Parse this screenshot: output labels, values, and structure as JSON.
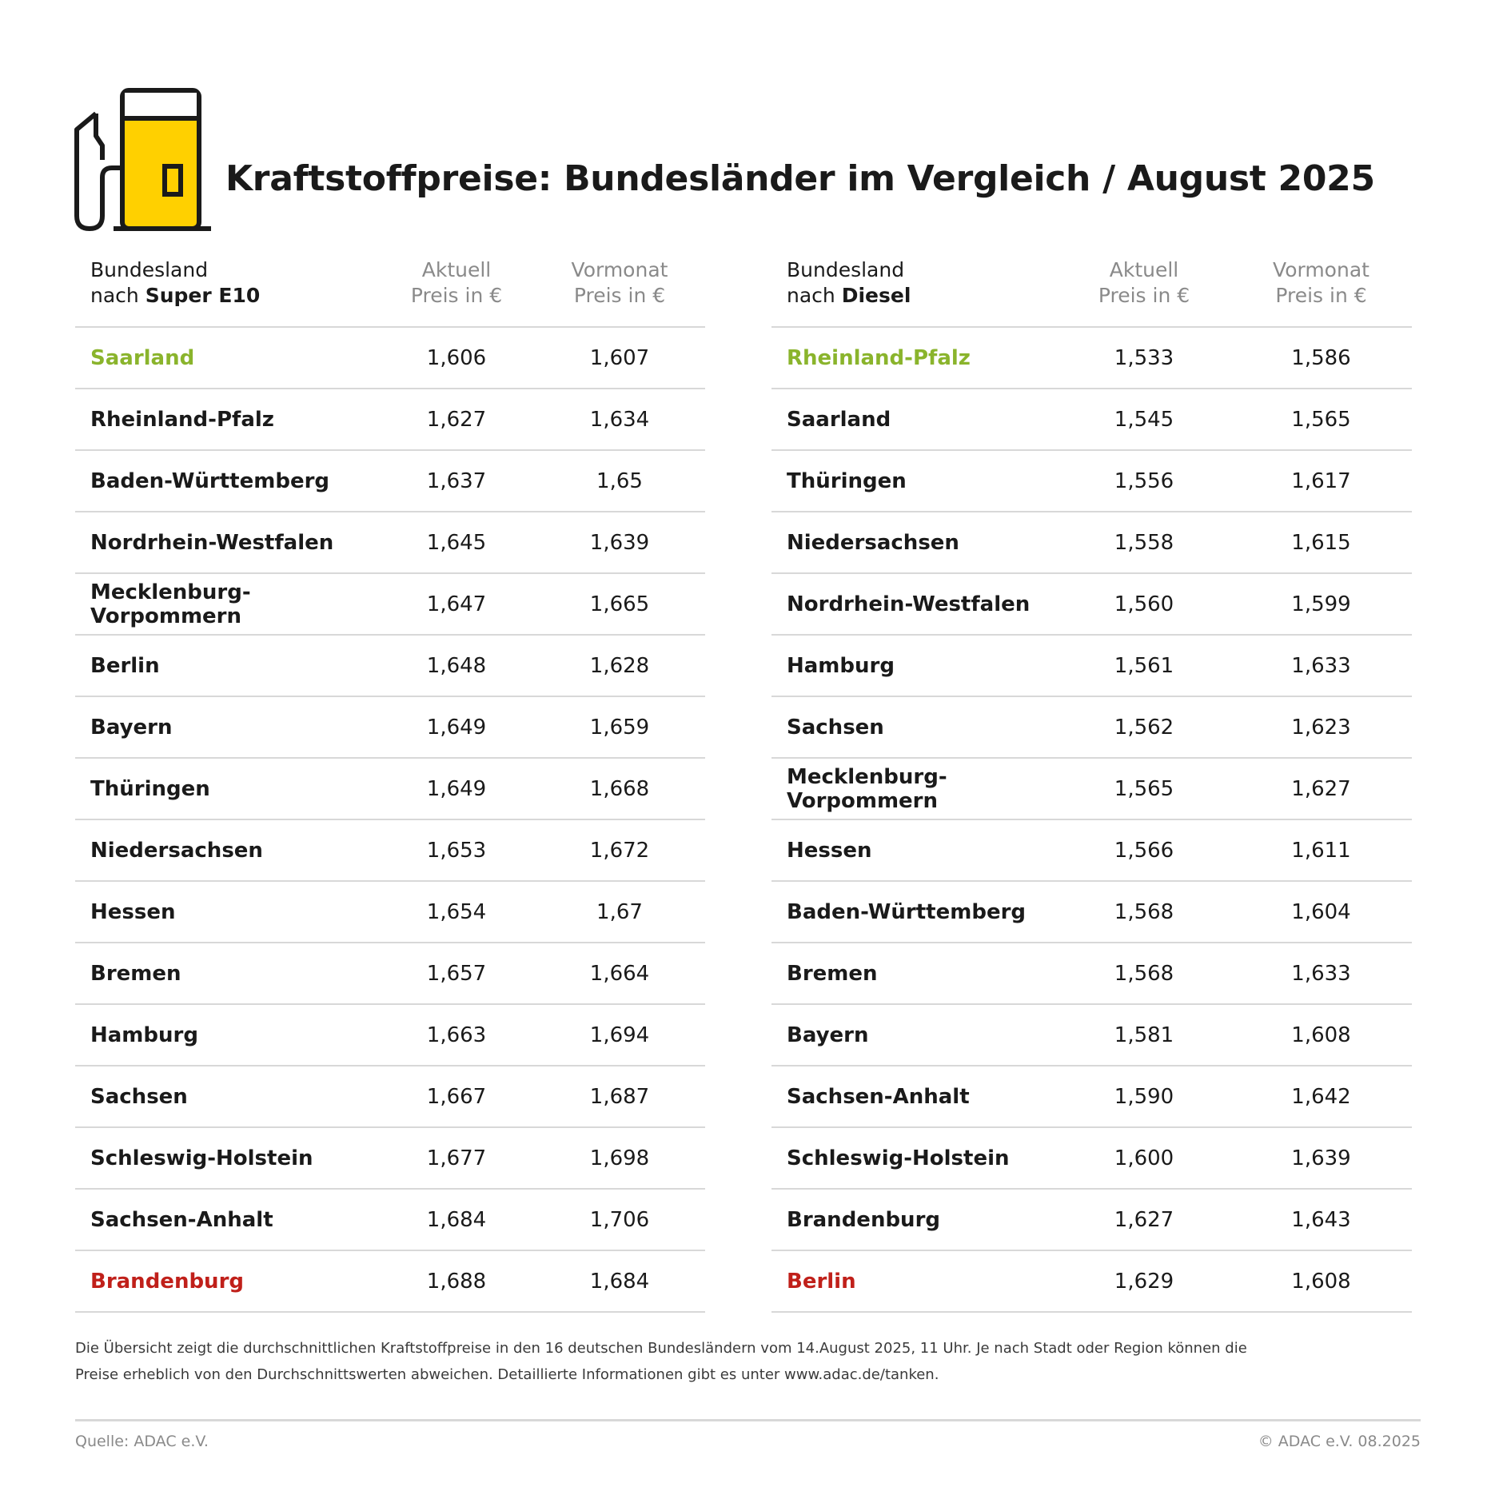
{
  "title": "Kraftstoffpreise: Bundesländer im Vergleich / August 2025",
  "icon": "fuel-pump-icon",
  "colors": {
    "accent": "#ffd000",
    "best": "#8ab42c",
    "worst": "#c0201a"
  },
  "chart_data": [
    {
      "type": "table",
      "header": {
        "region_line1": "Bundesland",
        "region_line2_prefix": "nach",
        "region_line2_fuel": "Super E10",
        "aktuell_line1": "Aktuell",
        "aktuell_line2": "Preis in €",
        "vormonat_line1": "Vormonat",
        "vormonat_line2": "Preis in €"
      },
      "rows": [
        [
          "Saarland",
          "1,606",
          "1,607"
        ],
        [
          "Rheinland-Pfalz",
          "1,627",
          "1,634"
        ],
        [
          "Baden-Württemberg",
          "1,637",
          "1,65"
        ],
        [
          "Nordrhein-Westfalen",
          "1,645",
          "1,639"
        ],
        [
          "Mecklenburg-Vorpommern",
          "1,647",
          "1,665"
        ],
        [
          "Berlin",
          "1,648",
          "1,628"
        ],
        [
          "Bayern",
          "1,649",
          "1,659"
        ],
        [
          "Thüringen",
          "1,649",
          "1,668"
        ],
        [
          "Niedersachsen",
          "1,653",
          "1,672"
        ],
        [
          "Hessen",
          "1,654",
          "1,67"
        ],
        [
          "Bremen",
          "1,657",
          "1,664"
        ],
        [
          "Hamburg",
          "1,663",
          "1,694"
        ],
        [
          "Sachsen",
          "1,667",
          "1,687"
        ],
        [
          "Schleswig-Holstein",
          "1,677",
          "1,698"
        ],
        [
          "Sachsen-Anhalt",
          "1,684",
          "1,706"
        ],
        [
          "Brandenburg",
          "1,688",
          "1,684"
        ]
      ]
    },
    {
      "type": "table",
      "header": {
        "region_line1": "Bundesland",
        "region_line2_prefix": "nach",
        "region_line2_fuel": "Diesel",
        "aktuell_line1": "Aktuell",
        "aktuell_line2": "Preis in €",
        "vormonat_line1": "Vormonat",
        "vormonat_line2": "Preis in €"
      },
      "rows": [
        [
          "Rheinland-Pfalz",
          "1,533",
          "1,586"
        ],
        [
          "Saarland",
          "1,545",
          "1,565"
        ],
        [
          "Thüringen",
          "1,556",
          "1,617"
        ],
        [
          "Niedersachsen",
          "1,558",
          "1,615"
        ],
        [
          "Nordrhein-Westfalen",
          "1,560",
          "1,599"
        ],
        [
          "Hamburg",
          "1,561",
          "1,633"
        ],
        [
          "Sachsen",
          "1,562",
          "1,623"
        ],
        [
          "Mecklenburg-Vorpommern",
          "1,565",
          "1,627"
        ],
        [
          "Hessen",
          "1,566",
          "1,611"
        ],
        [
          "Baden-Württemberg",
          "1,568",
          "1,604"
        ],
        [
          "Bremen",
          "1,568",
          "1,633"
        ],
        [
          "Bayern",
          "1,581",
          "1,608"
        ],
        [
          "Sachsen-Anhalt",
          "1,590",
          "1,642"
        ],
        [
          "Schleswig-Holstein",
          "1,600",
          "1,639"
        ],
        [
          "Brandenburg",
          "1,627",
          "1,643"
        ],
        [
          "Berlin",
          "1,629",
          "1,608"
        ]
      ]
    }
  ],
  "footnote_line1": "Die Übersicht zeigt die durchschnittlichen Kraftstoffpreise in den 16 deutschen Bundesländern vom 14.August 2025, 11 Uhr. Je nach Stadt oder Region können die",
  "footnote_line2": "Preise erheblich von den Durchschnittswerten abweichen. Detaillierte Informationen gibt es unter www.adac.de/tanken.",
  "source": "Quelle: ADAC e.V.",
  "copyright": "© ADAC e.V. 08.2025"
}
